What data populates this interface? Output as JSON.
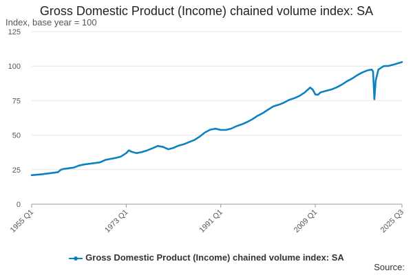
{
  "colors": {
    "series": "#0a82c0"
  },
  "chart_data": {
    "type": "line",
    "title": "Gross Domestic Product (Income) chained volume index: SA",
    "ylabel": "Index, base year = 100",
    "xlabel": "",
    "ylim": [
      0,
      125
    ],
    "yticks": [
      0,
      25,
      50,
      75,
      100,
      125
    ],
    "grid": true,
    "legend_position": "bottom",
    "x_tick_labels": [
      "1955 Q1",
      "1973 Q1",
      "1991 Q1",
      "2009 Q1",
      "2025 Q3"
    ],
    "x_tick_years": [
      1955,
      1973,
      1991,
      2009,
      2025.5
    ],
    "xlim": [
      1955,
      2025.5
    ],
    "series": [
      {
        "name": "Gross Domestic Product (Income) chained volume index: SA",
        "x": [
          1955,
          1957,
          1960,
          1960.5,
          1961,
          1963,
          1964,
          1965,
          1967,
          1968,
          1969,
          1970,
          1971,
          1972,
          1973,
          1973.5,
          1974,
          1975,
          1976,
          1977,
          1978,
          1979,
          1980,
          1981,
          1982,
          1983,
          1984,
          1985,
          1986,
          1987,
          1988,
          1989,
          1990,
          1991,
          1992,
          1993,
          1994,
          1995,
          1996,
          1997,
          1998,
          1999,
          2000,
          2001,
          2002,
          2003,
          2004,
          2005,
          2006,
          2007,
          2008,
          2008.5,
          2009,
          2009.5,
          2010,
          2011,
          2012,
          2013,
          2014,
          2015,
          2016,
          2017,
          2018,
          2019,
          2019.75,
          2020,
          2020.25,
          2020.5,
          2021,
          2022,
          2023,
          2024,
          2025.5
        ],
        "values": [
          21.0,
          21.7,
          23.2,
          24.8,
          25.5,
          26.5,
          28.0,
          28.8,
          29.8,
          30.3,
          32.0,
          32.8,
          33.5,
          34.5,
          37.0,
          39.0,
          38.0,
          37.0,
          37.8,
          39.0,
          40.5,
          42.2,
          41.5,
          39.8,
          40.8,
          42.5,
          43.5,
          45.0,
          46.5,
          49.0,
          52.0,
          54.0,
          54.7,
          53.8,
          53.8,
          54.8,
          56.5,
          57.8,
          59.5,
          61.5,
          64.0,
          66.0,
          68.5,
          70.8,
          72.0,
          73.5,
          75.5,
          76.8,
          78.5,
          81.0,
          84.5,
          83.0,
          79.5,
          79.3,
          81.0,
          82.0,
          83.0,
          84.5,
          86.5,
          89.0,
          91.0,
          93.5,
          95.5,
          97.0,
          97.5,
          96.0,
          76.0,
          89.5,
          97.5,
          100.0,
          100.2,
          101.2,
          103.0
        ]
      }
    ]
  },
  "legend": {
    "label": "Gross Domestic Product (Income) chained volume index: SA"
  },
  "credit": "Source:"
}
